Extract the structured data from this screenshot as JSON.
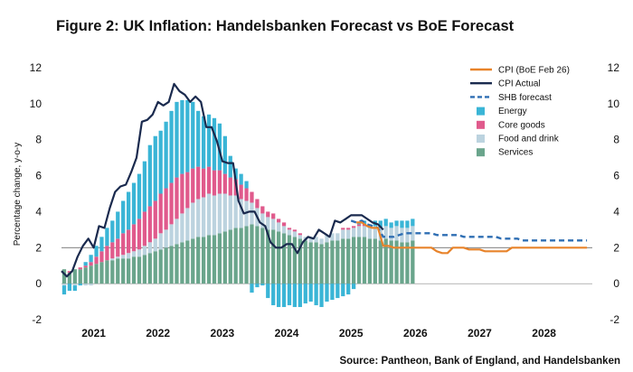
{
  "chart_data": {
    "type": "bar",
    "title": "Figure 2: UK Inflation: Handelsbanken Forecast vs BoE Forecast",
    "source": "Source: Pantheon, Bank of England, and Handelsbanken",
    "ylabel": "Percentage change, y-o-y",
    "ylim": [
      -2,
      12
    ],
    "yticks": [
      -2,
      0,
      2,
      4,
      6,
      8,
      10,
      12
    ],
    "xticks": [
      {
        "label": "2021",
        "x": 2021.5
      },
      {
        "label": "2022",
        "x": 2022.5
      },
      {
        "label": "2023",
        "x": 2023.5
      },
      {
        "label": "2024",
        "x": 2024.5
      },
      {
        "label": "2025",
        "x": 2025.5
      },
      {
        "label": "2026",
        "x": 2026.5
      },
      {
        "label": "2027",
        "x": 2027.5
      },
      {
        "label": "2028",
        "x": 2028.5
      }
    ],
    "xlim": [
      2021.0,
      2029.25
    ],
    "reference_line": 2,
    "bars_start": 2021.0,
    "bar_step": 0.08333,
    "stack_order": [
      "Services",
      "Food and drink",
      "Core goods",
      "Energy"
    ],
    "bar_series": [
      {
        "name": "Services",
        "color": "#6aa58c",
        "values": [
          0.8,
          0.6,
          0.8,
          0.8,
          0.9,
          1.0,
          1.1,
          1.2,
          1.3,
          1.3,
          1.4,
          1.4,
          1.4,
          1.5,
          1.5,
          1.6,
          1.7,
          1.8,
          1.9,
          2.0,
          2.1,
          2.2,
          2.3,
          2.4,
          2.5,
          2.6,
          2.6,
          2.7,
          2.7,
          2.8,
          2.9,
          3.0,
          3.1,
          3.1,
          3.2,
          3.3,
          3.2,
          3.1,
          3.0,
          3.0,
          2.9,
          2.8,
          2.7,
          2.6,
          2.5,
          2.4,
          2.3,
          2.3,
          2.2,
          2.3,
          2.4,
          2.4,
          2.5,
          2.5,
          2.6,
          2.6,
          2.6,
          2.5,
          2.5,
          2.4,
          2.5,
          2.4,
          2.4,
          2.3,
          2.3,
          2.4
        ]
      },
      {
        "name": "Food and drink",
        "color": "#bcd3df",
        "values": [
          -0.1,
          0.0,
          -0.1,
          0.0,
          -0.1,
          -0.1,
          0.0,
          0.0,
          0.0,
          0.1,
          0.1,
          0.2,
          0.3,
          0.3,
          0.4,
          0.5,
          0.6,
          0.7,
          0.9,
          1.0,
          1.2,
          1.4,
          1.6,
          1.8,
          2.0,
          2.1,
          2.2,
          2.3,
          2.2,
          2.2,
          2.1,
          1.9,
          1.8,
          1.6,
          1.4,
          1.2,
          1.0,
          0.8,
          0.7,
          0.6,
          0.5,
          0.4,
          0.3,
          0.3,
          0.2,
          0.2,
          0.3,
          0.3,
          0.3,
          0.4,
          0.4,
          0.4,
          0.5,
          0.5,
          0.5,
          0.6,
          0.6,
          0.6,
          0.7,
          0.7,
          0.7,
          0.7,
          0.8,
          0.8,
          0.8,
          0.8
        ]
      },
      {
        "name": "Core goods",
        "color": "#e05a8c",
        "values": [
          0.0,
          0.1,
          0.0,
          0.1,
          0.1,
          0.2,
          0.4,
          0.6,
          0.8,
          0.9,
          1.0,
          1.2,
          1.3,
          1.5,
          1.7,
          1.9,
          2.0,
          2.1,
          2.2,
          2.3,
          2.3,
          2.3,
          2.2,
          2.0,
          1.9,
          1.8,
          1.6,
          1.5,
          1.4,
          1.3,
          1.1,
          1.0,
          0.9,
          0.8,
          0.7,
          0.6,
          0.5,
          0.4,
          0.3,
          0.3,
          0.2,
          0.2,
          0.1,
          0.1,
          0.1,
          0.0,
          0.0,
          0.0,
          0.0,
          0.0,
          0.0,
          0.0,
          0.1,
          0.1,
          0.1,
          0.1,
          0.1,
          0.0,
          0.0,
          0.0,
          0.0,
          0.0,
          0.0,
          0.0,
          0.0,
          0.0
        ]
      },
      {
        "name": "Energy",
        "color": "#3ab5d6",
        "values": [
          -0.5,
          -0.4,
          -0.3,
          -0.1,
          0.2,
          0.4,
          0.6,
          0.8,
          1.0,
          1.2,
          1.5,
          1.8,
          2.1,
          2.3,
          2.5,
          2.8,
          3.4,
          3.6,
          3.5,
          3.7,
          4.0,
          4.2,
          4.1,
          4.0,
          3.7,
          3.1,
          2.9,
          2.9,
          2.9,
          2.6,
          2.1,
          1.2,
          0.6,
          0.6,
          0.4,
          -0.5,
          -0.2,
          -0.1,
          -0.8,
          -1.2,
          -1.3,
          -1.3,
          -1.2,
          -1.3,
          -1.3,
          -1.1,
          -1.0,
          -1.2,
          -1.3,
          -1.0,
          -0.9,
          -0.8,
          -0.7,
          -0.6,
          -0.3,
          0.1,
          0.2,
          0.2,
          0.3,
          0.4,
          0.4,
          0.3,
          0.3,
          0.4,
          0.4,
          0.4
        ]
      }
    ],
    "line_series": [
      {
        "name": "CPI (BoE Feb 26)",
        "color": "#e8832a",
        "style": "solid",
        "x": [
          2025.583,
          2025.667,
          2025.75,
          2025.833,
          2025.917,
          2026.0,
          2026.083,
          2026.167,
          2026.25,
          2026.333,
          2026.417,
          2026.5,
          2026.583,
          2026.667,
          2026.75,
          2026.833,
          2026.917,
          2027.0,
          2027.083,
          2027.167,
          2027.25,
          2027.333,
          2027.417,
          2027.5,
          2027.583,
          2027.667,
          2027.75,
          2027.833,
          2027.917,
          2028.0,
          2028.083,
          2028.167,
          2028.25,
          2028.333,
          2028.417,
          2028.5,
          2028.583,
          2028.667,
          2028.75,
          2028.833,
          2028.917,
          2029.0,
          2029.083,
          2029.167
        ],
        "y": [
          3.4,
          3.4,
          3.2,
          3.1,
          3.1,
          2.1,
          2.1,
          2.0,
          2.0,
          2.0,
          2.0,
          2.0,
          2.0,
          2.0,
          2.0,
          1.8,
          1.7,
          1.7,
          2.0,
          2.0,
          2.0,
          1.9,
          1.9,
          1.9,
          1.8,
          1.8,
          1.8,
          1.8,
          1.8,
          2.0,
          2.0,
          2.0,
          2.0,
          2.0,
          2.0,
          2.0,
          2.0,
          2.0,
          2.0,
          2.0,
          2.0,
          2.0,
          2.0,
          2.0
        ]
      },
      {
        "name": "CPI Actual",
        "color": "#1a2a4e",
        "style": "solid",
        "x": [
          2021.0,
          2021.083,
          2021.167,
          2021.25,
          2021.333,
          2021.417,
          2021.5,
          2021.583,
          2021.667,
          2021.75,
          2021.833,
          2021.917,
          2022.0,
          2022.083,
          2022.167,
          2022.25,
          2022.333,
          2022.417,
          2022.5,
          2022.583,
          2022.667,
          2022.75,
          2022.833,
          2022.917,
          2023.0,
          2023.083,
          2023.167,
          2023.25,
          2023.333,
          2023.417,
          2023.5,
          2023.583,
          2023.667,
          2023.75,
          2023.833,
          2023.917,
          2024.0,
          2024.083,
          2024.167,
          2024.25,
          2024.333,
          2024.417,
          2024.5,
          2024.583,
          2024.667,
          2024.75,
          2024.833,
          2024.917,
          2025.0,
          2025.083,
          2025.167,
          2025.25,
          2025.333,
          2025.417,
          2025.5,
          2025.583,
          2025.667,
          2025.75,
          2025.833,
          2025.917,
          2026.0
        ],
        "y": [
          0.7,
          0.4,
          0.7,
          1.5,
          2.1,
          2.5,
          2.0,
          3.2,
          3.1,
          4.2,
          5.1,
          5.4,
          5.5,
          6.2,
          7.0,
          9.0,
          9.1,
          9.4,
          10.1,
          9.9,
          10.1,
          11.1,
          10.7,
          10.5,
          10.1,
          10.4,
          10.1,
          8.7,
          8.7,
          7.9,
          6.8,
          6.7,
          6.7,
          4.6,
          3.9,
          4.0,
          4.0,
          3.4,
          3.2,
          2.3,
          2.0,
          2.0,
          2.2,
          2.2,
          1.7,
          2.3,
          2.6,
          2.5,
          3.0,
          2.8,
          2.6,
          3.5,
          3.4,
          3.6,
          3.8,
          3.8,
          3.8,
          3.6,
          3.4,
          3.3,
          3.0
        ]
      },
      {
        "name": "SHB forecast",
        "color": "#2e6eb3",
        "style": "dashed",
        "x": [
          2025.5,
          2025.583,
          2025.667,
          2025.75,
          2025.833,
          2025.917,
          2026.0,
          2026.083,
          2026.167,
          2026.25,
          2026.333,
          2026.417,
          2026.5,
          2026.583,
          2026.667,
          2026.75,
          2026.833,
          2026.917,
          2027.0,
          2027.083,
          2027.167,
          2027.25,
          2027.333,
          2027.417,
          2027.5,
          2027.583,
          2027.667,
          2027.75,
          2027.833,
          2027.917,
          2028.0,
          2028.083,
          2028.167,
          2028.25,
          2028.333,
          2028.417,
          2028.5,
          2028.583,
          2028.667,
          2028.75,
          2028.833,
          2028.917,
          2029.0,
          2029.083,
          2029.167
        ],
        "y": [
          3.5,
          3.4,
          3.5,
          3.3,
          3.2,
          3.1,
          2.6,
          2.6,
          2.6,
          2.7,
          2.8,
          2.8,
          2.8,
          2.8,
          2.8,
          2.8,
          2.7,
          2.7,
          2.7,
          2.7,
          2.7,
          2.6,
          2.6,
          2.6,
          2.6,
          2.6,
          2.6,
          2.6,
          2.5,
          2.5,
          2.5,
          2.5,
          2.4,
          2.4,
          2.4,
          2.4,
          2.4,
          2.4,
          2.4,
          2.4,
          2.4,
          2.4,
          2.4,
          2.4,
          2.4
        ]
      }
    ],
    "legend": [
      {
        "label": "CPI (BoE Feb 26)",
        "kind": "line",
        "color": "#e8832a"
      },
      {
        "label": "CPI Actual",
        "kind": "line",
        "color": "#1a2a4e"
      },
      {
        "label": "SHB forecast",
        "kind": "dash",
        "color": "#2e6eb3"
      },
      {
        "label": "Energy",
        "kind": "box",
        "color": "#3ab5d6"
      },
      {
        "label": "Core goods",
        "kind": "box",
        "color": "#e05a8c"
      },
      {
        "label": "Food and drink",
        "kind": "box",
        "color": "#bcd3df"
      },
      {
        "label": "Services",
        "kind": "box",
        "color": "#6aa58c"
      }
    ]
  }
}
